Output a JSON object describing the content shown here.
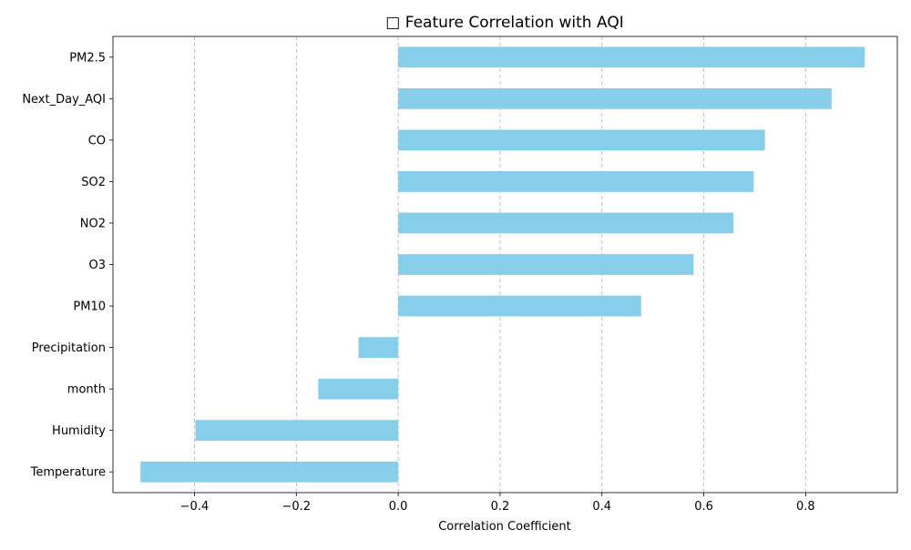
{
  "chart_data": {
    "type": "bar",
    "orientation": "horizontal",
    "title": "□ Feature Correlation with AQI",
    "xlabel": "Correlation Coefficient",
    "ylabel": "",
    "xlim": [
      -0.56,
      0.98
    ],
    "xticks": [
      -0.4,
      -0.2,
      0.0,
      0.2,
      0.4,
      0.6,
      0.8
    ],
    "xtick_labels": [
      "−0.4",
      "−0.2",
      "0.0",
      "0.2",
      "0.4",
      "0.6",
      "0.8"
    ],
    "grid": "x-axis dashed",
    "legend": "none",
    "bar_color": "#87CEEB",
    "categories": [
      "PM2.5",
      "Next_Day_AQI",
      "CO",
      "SO2",
      "NO2",
      "O3",
      "PM10",
      "Precipitation",
      "month",
      "Humidity",
      "Temperature"
    ],
    "values": [
      0.916,
      0.851,
      0.72,
      0.698,
      0.658,
      0.58,
      0.477,
      -0.078,
      -0.157,
      -0.398,
      -0.506
    ]
  }
}
